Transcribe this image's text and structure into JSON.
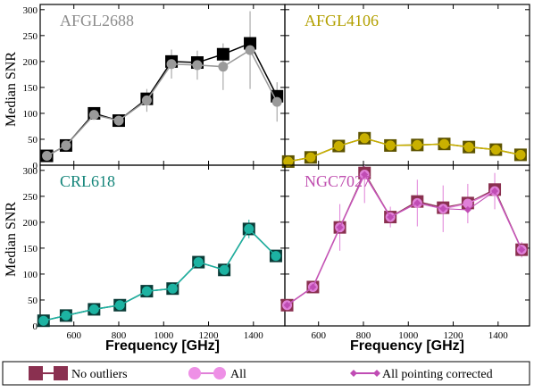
{
  "figure": {
    "ylabel": "Median SNR",
    "xlabel": "Frequency [GHz]",
    "x_ticks": [
      600,
      800,
      1000,
      1200,
      1400
    ],
    "y_ticks": [
      0,
      50,
      100,
      150,
      200,
      250,
      300
    ],
    "xlim": [
      450,
      1540
    ],
    "ylim": [
      0,
      310
    ]
  },
  "legend": {
    "no_outliers": "No outliers",
    "all": "All",
    "pointing": "All pointing corrected"
  },
  "chart_data": [
    {
      "type": "line",
      "title": "AFGL2688",
      "title_color": "#8c8c8c",
      "x": [
        480,
        565,
        690,
        800,
        925,
        1035,
        1150,
        1265,
        1385,
        1505
      ],
      "series": [
        {
          "name": "No outliers",
          "color": "#000000",
          "values": [
            18,
            38,
            100,
            86,
            128,
            200,
            198,
            214,
            235,
            133
          ]
        },
        {
          "name": "All",
          "color": "#9a9a9a",
          "values": [
            18,
            38,
            97,
            86,
            125,
            195,
            193,
            190,
            222,
            122
          ],
          "err": [
            0,
            0,
            8,
            0,
            22,
            28,
            28,
            45,
            75,
            38
          ]
        },
        {
          "name": "All pointing corrected",
          "color": "#9a9a9a",
          "values": [
            18,
            38,
            97,
            86,
            125,
            195,
            193,
            190,
            222,
            122
          ]
        }
      ]
    },
    {
      "type": "line",
      "title": "AFGL4106",
      "title_color": "#b3a000",
      "x": [
        465,
        565,
        690,
        805,
        920,
        1040,
        1160,
        1270,
        1390,
        1500
      ],
      "series": [
        {
          "name": "No outliers",
          "color": "#5e5400",
          "values": [
            7,
            15,
            37,
            52,
            38,
            39,
            41,
            35,
            30,
            20
          ]
        },
        {
          "name": "All",
          "color": "#c9b000",
          "values": [
            7,
            15,
            37,
            52,
            38,
            39,
            41,
            35,
            30,
            20
          ],
          "err": [
            0,
            0,
            0,
            6,
            0,
            0,
            0,
            0,
            0,
            0
          ]
        },
        {
          "name": "All pointing corrected",
          "color": "#c9b000",
          "values": [
            7,
            15,
            37,
            52,
            38,
            39,
            41,
            35,
            30,
            20
          ]
        }
      ]
    },
    {
      "type": "line",
      "title": "CRL618",
      "title_color": "#14857a",
      "x": [
        465,
        565,
        690,
        805,
        925,
        1040,
        1155,
        1270,
        1380,
        1500
      ],
      "series": [
        {
          "name": "No outliers",
          "color": "#0a3c38",
          "values": [
            10,
            20,
            32,
            40,
            67,
            72,
            123,
            108,
            187,
            135
          ]
        },
        {
          "name": "All",
          "color": "#1db3a2",
          "values": [
            10,
            20,
            32,
            40,
            67,
            72,
            123,
            108,
            187,
            135
          ],
          "err": [
            0,
            0,
            0,
            0,
            0,
            0,
            0,
            0,
            18,
            0
          ]
        },
        {
          "name": "All pointing corrected",
          "color": "#1db3a2",
          "values": [
            10,
            20,
            32,
            40,
            67,
            72,
            123,
            108,
            187,
            135
          ]
        }
      ]
    },
    {
      "type": "line",
      "title": "NGC7027",
      "title_color": "#c050b0",
      "x": [
        460,
        575,
        695,
        805,
        920,
        1040,
        1155,
        1265,
        1385,
        1505
      ],
      "series": [
        {
          "name": "No outliers",
          "color": "#8a3050",
          "values": [
            40,
            75,
            190,
            295,
            210,
            240,
            228,
            237,
            263,
            147
          ]
        },
        {
          "name": "All",
          "color": "#e080d8",
          "values": [
            40,
            75,
            190,
            292,
            210,
            237,
            226,
            236,
            260,
            147
          ],
          "err": [
            0,
            0,
            45,
            55,
            20,
            45,
            45,
            38,
            35,
            15
          ]
        },
        {
          "name": "All pointing corrected",
          "color": "#c04cb4",
          "values": [
            40,
            75,
            190,
            292,
            210,
            237,
            226,
            224,
            260,
            147
          ]
        }
      ]
    }
  ]
}
